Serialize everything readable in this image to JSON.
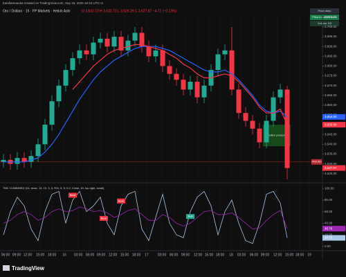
{
  "header": {
    "credit": "bandiamaaoka created on TradingView.com, Sep 18, 2025 16:24 UTC+2",
    "symbol": "Oro / Dollaro · 15 · FP Markets · Heikin Ashi",
    "ohlc": "O 3,632.73  H 3,632.73  L 3,626.29  C 3,627.87  −4.71 (−0.13%)"
  },
  "status_boxes": [
    "Price deep",
    "Price in bullish zone",
    "Volume 3/3"
  ],
  "logo": "TradingView",
  "chart_data": [
    {
      "type": "candlestick",
      "up_color": "#22ab94",
      "down_color": "#f23645",
      "open": [
        3631,
        3632,
        3630,
        3633,
        3631,
        3634,
        3640,
        3650,
        3662,
        3670,
        3678,
        3684,
        3688,
        3686,
        3692,
        3694,
        3690,
        3695,
        3688,
        3693,
        3697,
        3690,
        3685,
        3688,
        3680,
        3676,
        3673,
        3668,
        3672,
        3664,
        3670,
        3678,
        3686,
        3688,
        3668,
        3656,
        3652,
        3648,
        3641,
        3652,
        3664,
        3668
      ],
      "high": [
        3635,
        3635,
        3636,
        3636,
        3637,
        3643,
        3653,
        3665,
        3673,
        3681,
        3687,
        3691,
        3691,
        3695,
        3697,
        3697,
        3698,
        3698,
        3696,
        3700,
        3700,
        3693,
        3691,
        3691,
        3683,
        3679,
        3676,
        3675,
        3675,
        3673,
        3681,
        3689,
        3691,
        3700,
        3671,
        3659,
        3655,
        3651,
        3655,
        3667,
        3671,
        3670
      ],
      "low": [
        3628,
        3627,
        3627,
        3628,
        3628,
        3631,
        3637,
        3647,
        3659,
        3667,
        3675,
        3681,
        3683,
        3683,
        3689,
        3687,
        3687,
        3685,
        3685,
        3690,
        3687,
        3682,
        3682,
        3677,
        3673,
        3670,
        3665,
        3665,
        3661,
        3661,
        3667,
        3675,
        3683,
        3665,
        3653,
        3649,
        3645,
        3638,
        3638,
        3649,
        3661,
        3622
      ],
      "close": [
        3632,
        3630,
        3633,
        3631,
        3634,
        3640,
        3650,
        3662,
        3670,
        3678,
        3684,
        3688,
        3686,
        3692,
        3694,
        3690,
        3695,
        3688,
        3693,
        3697,
        3690,
        3685,
        3688,
        3680,
        3676,
        3673,
        3668,
        3672,
        3664,
        3670,
        3678,
        3686,
        3688,
        3668,
        3656,
        3652,
        3648,
        3641,
        3652,
        3664,
        3668,
        3627.87
      ],
      "close_label": "3,627.87",
      "series": [
        {
          "color": "#2962ff",
          "values": [
            3631,
            3631,
            3631,
            3631,
            3632,
            3633,
            3636,
            3640,
            3645,
            3651,
            3657,
            3663,
            3668,
            3673,
            3677,
            3680,
            3683,
            3685,
            3687,
            3689,
            3690,
            3690,
            3690,
            3689,
            3688,
            3686,
            3684,
            3682,
            3680,
            3678,
            3677,
            3677,
            3678,
            3676,
            3673,
            3669,
            3665,
            3660,
            3657,
            3656,
            3657,
            3654
          ],
          "last_label": "3,654.00"
        },
        {
          "color": "#f23645",
          "values": [
            null,
            null,
            null,
            null,
            null,
            null,
            null,
            null,
            null,
            null,
            3668,
            3672,
            3676,
            3680,
            3683,
            3686,
            3688,
            3689,
            3690,
            3691,
            3691,
            3690,
            3689,
            3688,
            3686,
            3684,
            3681,
            3679,
            3676,
            3674,
            3674,
            3675,
            3676,
            3675,
            3672,
            3668,
            3664,
            3659,
            3656,
            3656,
            3658,
            3650
          ],
          "last_label": "3,650.00"
        }
      ],
      "level": {
        "value": 3631,
        "tag": "XAUUSD"
      },
      "zone": {
        "from": 37.5,
        "to": 41.5,
        "low": 3639,
        "high": 3650,
        "label": "Bullish pressure"
      },
      "ylim": [
        3621,
        3706
      ],
      "yticks": [
        {
          "value": 3625,
          "label": "3,625.00"
        },
        {
          "value": 3630,
          "label": "3,630.00"
        },
        {
          "value": 3635,
          "label": "3,635.00"
        },
        {
          "value": 3640,
          "label": "3,640.00"
        },
        {
          "value": 3645,
          "label": "3,645.00"
        },
        {
          "value": 3650,
          "label": "3,650.00"
        },
        {
          "value": 3655,
          "label": "3,655.00"
        },
        {
          "value": 3660,
          "label": "3,660.00"
        },
        {
          "value": 3665,
          "label": "3,665.00"
        },
        {
          "value": 3670,
          "label": "3,670.00"
        },
        {
          "value": 3675,
          "label": "3,675.00"
        },
        {
          "value": 3680,
          "label": "3,680.00"
        },
        {
          "value": 3685,
          "label": "3,685.00"
        },
        {
          "value": 3690,
          "label": "3,690.00"
        },
        {
          "value": 3695,
          "label": "3,695.00"
        },
        {
          "value": 3700,
          "label": "3,700.00"
        },
        {
          "value": 3705,
          "label": "3,705.00"
        }
      ],
      "xlim": [
        -0.5,
        46
      ],
      "xticks": [
        {
          "value": 0.3,
          "label": "06:00"
        },
        {
          "value": 1.9,
          "label": "09:00"
        },
        {
          "value": 3.5,
          "label": "12:00"
        },
        {
          "value": 5.3,
          "label": "15:00"
        },
        {
          "value": 7,
          "label": "18:00"
        },
        {
          "value": 8.8,
          "label": "16"
        },
        {
          "value": 10.8,
          "label": "03:00"
        },
        {
          "value": 12.5,
          "label": "06:00"
        },
        {
          "value": 14.1,
          "label": "09:00"
        },
        {
          "value": 15.8,
          "label": "12:00"
        },
        {
          "value": 17.5,
          "label": "15:00"
        },
        {
          "value": 19.2,
          "label": "18:00"
        },
        {
          "value": 20.7,
          "label": "17"
        },
        {
          "value": 22.9,
          "label": "03:00"
        },
        {
          "value": 24.6,
          "label": "06:00"
        },
        {
          "value": 26.3,
          "label": "09:00"
        },
        {
          "value": 28.1,
          "label": "12:00"
        },
        {
          "value": 29.7,
          "label": "15:00"
        },
        {
          "value": 31.3,
          "label": "18:00"
        },
        {
          "value": 32.9,
          "label": "18"
        },
        {
          "value": 34.4,
          "label": "03:00"
        },
        {
          "value": 36.2,
          "label": "06:00"
        },
        {
          "value": 37.8,
          "label": "09:00"
        },
        {
          "value": 39.6,
          "label": "12:00"
        },
        {
          "value": 41.3,
          "label": "15:00"
        },
        {
          "value": 42.8,
          "label": "18:00"
        },
        {
          "value": 44.2,
          "label": "19"
        }
      ]
    },
    {
      "type": "line",
      "title": "TMC COMBINED (14, close, 14, 10, 3, 3, RSI, 5, 5, 0.2, Close, 10, top right, small)",
      "series": [
        {
          "color": "#a9c8e8",
          "values": [
            20,
            60,
            85,
            70,
            30,
            10,
            60,
            90,
            95,
            40,
            80,
            95,
            60,
            70,
            85,
            40,
            20,
            70,
            90,
            95,
            30,
            10,
            50,
            90,
            40,
            20,
            15,
            60,
            85,
            95,
            70,
            20,
            60,
            80,
            40,
            10,
            5,
            40,
            90,
            95,
            75,
            14.72
          ],
          "last_label": "14.72"
        },
        {
          "color": "#9c27b0",
          "values": [
            40,
            45,
            55,
            60,
            55,
            45,
            50,
            60,
            65,
            60,
            62,
            68,
            65,
            60,
            62,
            58,
            50,
            55,
            62,
            65,
            55,
            45,
            45,
            55,
            50,
            40,
            35,
            40,
            50,
            60,
            62,
            55,
            55,
            58,
            50,
            40,
            30,
            32,
            45,
            55,
            62,
            30.78
          ],
          "last_label": "30.78"
        }
      ],
      "signals": [
        {
          "bar": 10,
          "label": "Bear",
          "color": "#f23645"
        },
        {
          "bar": 14.5,
          "label": "Bear",
          "color": "#f23645"
        },
        {
          "bar": 17,
          "label": "Bear",
          "color": "#f23645"
        },
        {
          "bar": 27,
          "label": "Bull",
          "color": "#22ab94"
        }
      ],
      "ylim": [
        -5,
        105
      ],
      "yticks": [
        {
          "value": 0,
          "label": "0.00"
        },
        {
          "value": 20,
          "label": "20.00"
        },
        {
          "value": 40,
          "label": "40.00"
        },
        {
          "value": 60,
          "label": "60.00"
        },
        {
          "value": 80,
          "label": "80.00"
        },
        {
          "value": 100,
          "label": "100.00"
        }
      ]
    }
  ]
}
